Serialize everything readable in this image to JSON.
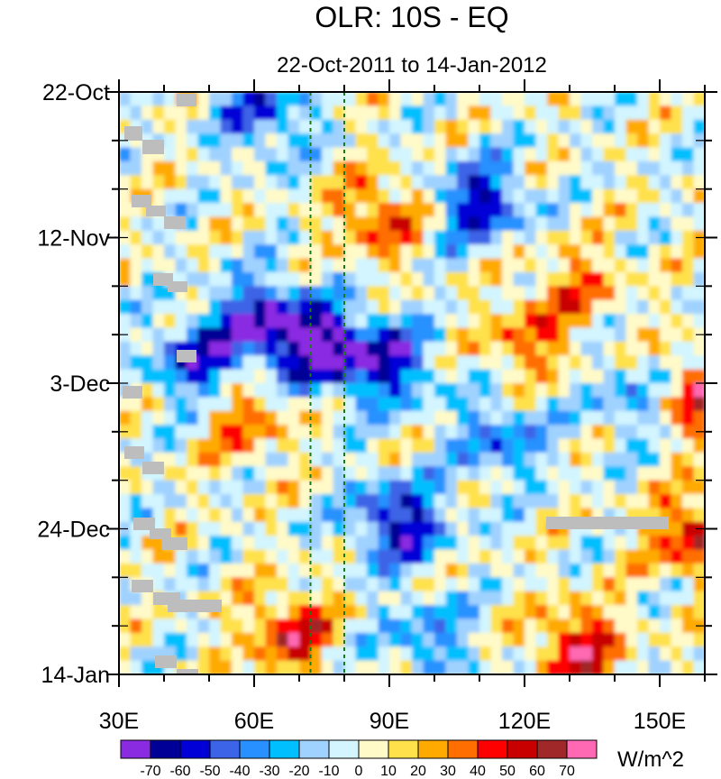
{
  "chart_data": {
    "type": "heatmap",
    "title": "OLR: 10S - EQ",
    "subtitle": "22-Oct-2011 to 14-Jan-2012",
    "x_axis": {
      "range": [
        30,
        160
      ],
      "ticks": [
        30,
        60,
        90,
        120,
        150
      ],
      "tick_labels": [
        "30E",
        "60E",
        "90E",
        "120E",
        "150E"
      ]
    },
    "y_axis": {
      "range_days_from_start": [
        0,
        84
      ],
      "ticks": [
        0,
        21,
        42,
        63,
        84
      ],
      "tick_labels": [
        "22-Oct",
        "12-Nov",
        "3-Dec",
        "24-Dec",
        "14-Jan"
      ],
      "direction": "top-to-bottom"
    },
    "reference_lines_longitude": [
      72.5,
      80
    ],
    "colorbar": {
      "unit": "W/m^2",
      "levels": [
        -70,
        -60,
        -50,
        -40,
        -30,
        -20,
        -10,
        0,
        10,
        20,
        30,
        40,
        50,
        60,
        70
      ],
      "level_labels": [
        "-70",
        "-60",
        "-50",
        "-40",
        "-30",
        "-20",
        "-10",
        "0",
        "10",
        "20",
        "30",
        "40",
        "50",
        "60",
        "70"
      ],
      "colors": [
        "#8a2be2",
        "#000096",
        "#0000d7",
        "#3c64e6",
        "#2891ff",
        "#00bfff",
        "#a0d2ff",
        "#d2f5ff",
        "#fffac8",
        "#ffe14b",
        "#ffaa00",
        "#ff6e00",
        "#ff0000",
        "#c80000",
        "#a02828",
        "#ff69b4"
      ]
    },
    "features": [
      {
        "desc": "negative",
        "lon": 47,
        "day": 39,
        "value": -55
      },
      {
        "desc": "negative",
        "lon": 62,
        "day": 33,
        "value": -65
      },
      {
        "desc": "negative",
        "lon": 75,
        "day": 37,
        "value": -72
      },
      {
        "desc": "negative",
        "lon": 90,
        "day": 39,
        "value": -55
      },
      {
        "desc": "negative",
        "lon": 110,
        "day": 16,
        "value": -60
      },
      {
        "desc": "negative",
        "lon": 62,
        "day": 3,
        "value": -45
      },
      {
        "desc": "negative",
        "lon": 92,
        "day": 62,
        "value": -65
      },
      {
        "desc": "negative",
        "lon": 115,
        "day": 50,
        "value": -40
      },
      {
        "desc": "negative",
        "lon": 145,
        "day": 44,
        "value": -35
      },
      {
        "desc": "negative",
        "lon": 98,
        "day": 79,
        "value": -35
      },
      {
        "desc": "positive",
        "lon": 58,
        "day": 47,
        "value": 35
      },
      {
        "desc": "positive",
        "lon": 88,
        "day": 18,
        "value": 45
      },
      {
        "desc": "positive",
        "lon": 68,
        "day": 78,
        "value": 50
      },
      {
        "desc": "positive",
        "lon": 132,
        "day": 80,
        "value": 55
      },
      {
        "desc": "positive",
        "lon": 158,
        "day": 44,
        "value": 55
      },
      {
        "desc": "positive",
        "lon": 120,
        "day": 36,
        "value": 35
      },
      {
        "desc": "positive",
        "lon": 132,
        "day": 28,
        "value": 30
      },
      {
        "desc": "positive",
        "lon": 158,
        "day": 64,
        "value": 55
      }
    ],
    "missing_data_note": "gray patches of missing data"
  }
}
